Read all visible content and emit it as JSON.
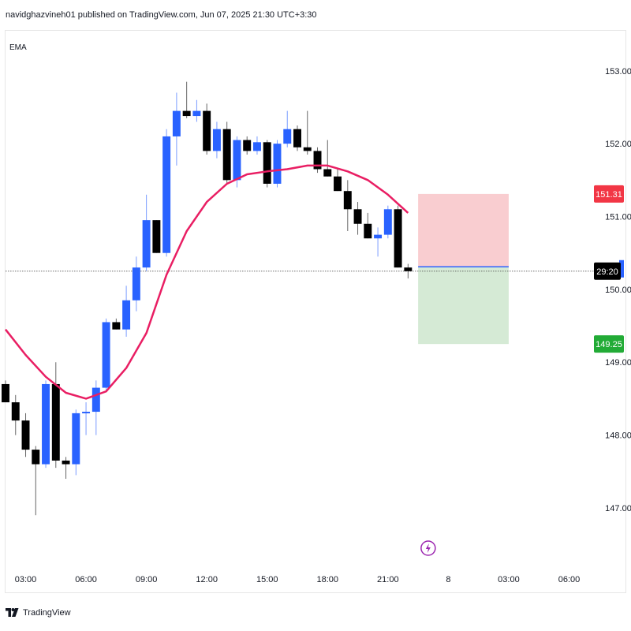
{
  "header": {
    "publisher_text": "navidghazvineh01 published on TradingView.com, Jun 07, 2025 21:30 UTC+3:30"
  },
  "footer": {
    "brand": "TradingView"
  },
  "indicator": {
    "label": "EMA",
    "color": "#e91e63"
  },
  "colors": {
    "up": "#2962ff",
    "down": "#000000",
    "stop_zone": "#f9cdd0",
    "target_zone": "#d5ead5",
    "stop_label_bg": "#f23645",
    "target_label_bg": "#22ab36",
    "current_label_bg": "#000000",
    "entry_line": "#2962ff"
  },
  "chart_data": {
    "type": "candlestick",
    "ylim": [
      146.35,
      153.55
    ],
    "y_ticks": [
      "153.00",
      "152.00",
      "151.00",
      "150.00",
      "149.00",
      "148.00",
      "147.00"
    ],
    "y_tick_values": [
      153,
      152,
      151,
      150,
      149,
      148,
      147
    ],
    "x_ticks": [
      "03:00",
      "06:00",
      "09:00",
      "12:00",
      "15:00",
      "18:00",
      "21:00",
      "8",
      "03:00",
      "06:00"
    ],
    "x_tick_hours": [
      3,
      6,
      9,
      12,
      15,
      18,
      21,
      24,
      27,
      30
    ],
    "x_range_hours": [
      2.0,
      31.0
    ],
    "candle_interval_hours": 0.5,
    "candles": [
      {
        "t": 2.0,
        "o": 148.7,
        "h": 148.75,
        "l": 148.45,
        "c": 148.45
      },
      {
        "t": 2.5,
        "o": 148.45,
        "h": 148.55,
        "l": 148.0,
        "c": 148.2
      },
      {
        "t": 3.0,
        "o": 148.2,
        "h": 148.3,
        "l": 147.7,
        "c": 147.8
      },
      {
        "t": 3.5,
        "o": 147.8,
        "h": 147.85,
        "l": 146.9,
        "c": 147.6
      },
      {
        "t": 4.0,
        "o": 147.6,
        "h": 148.75,
        "l": 147.55,
        "c": 148.7
      },
      {
        "t": 4.5,
        "o": 148.7,
        "h": 149.0,
        "l": 147.55,
        "c": 147.65
      },
      {
        "t": 5.0,
        "o": 147.65,
        "h": 147.7,
        "l": 147.4,
        "c": 147.6
      },
      {
        "t": 5.5,
        "o": 147.6,
        "h": 148.35,
        "l": 147.45,
        "c": 148.3
      },
      {
        "t": 6.0,
        "o": 148.3,
        "h": 148.45,
        "l": 148.0,
        "c": 148.32
      },
      {
        "t": 6.5,
        "o": 148.32,
        "h": 148.75,
        "l": 148.0,
        "c": 148.65
      },
      {
        "t": 7.0,
        "o": 148.65,
        "h": 149.6,
        "l": 148.6,
        "c": 149.55
      },
      {
        "t": 7.5,
        "o": 149.55,
        "h": 149.6,
        "l": 149.45,
        "c": 149.45
      },
      {
        "t": 8.0,
        "o": 149.45,
        "h": 150.05,
        "l": 149.35,
        "c": 149.85
      },
      {
        "t": 8.5,
        "o": 149.85,
        "h": 150.45,
        "l": 149.7,
        "c": 150.3
      },
      {
        "t": 9.0,
        "o": 150.3,
        "h": 151.3,
        "l": 150.25,
        "c": 150.95
      },
      {
        "t": 9.5,
        "o": 150.95,
        "h": 150.95,
        "l": 150.5,
        "c": 150.5
      },
      {
        "t": 10.0,
        "o": 150.5,
        "h": 152.2,
        "l": 150.45,
        "c": 152.1
      },
      {
        "t": 10.5,
        "o": 152.1,
        "h": 152.7,
        "l": 151.7,
        "c": 152.45
      },
      {
        "t": 11.0,
        "o": 152.45,
        "h": 152.85,
        "l": 152.35,
        "c": 152.38
      },
      {
        "t": 11.5,
        "o": 152.38,
        "h": 152.6,
        "l": 152.3,
        "c": 152.45
      },
      {
        "t": 12.0,
        "o": 152.45,
        "h": 152.55,
        "l": 151.85,
        "c": 151.9
      },
      {
        "t": 12.5,
        "o": 151.9,
        "h": 152.3,
        "l": 151.8,
        "c": 152.2
      },
      {
        "t": 13.0,
        "o": 152.2,
        "h": 152.3,
        "l": 151.45,
        "c": 151.5
      },
      {
        "t": 13.5,
        "o": 151.5,
        "h": 152.1,
        "l": 151.4,
        "c": 152.05
      },
      {
        "t": 14.0,
        "o": 152.05,
        "h": 152.1,
        "l": 151.85,
        "c": 151.9
      },
      {
        "t": 14.5,
        "o": 151.9,
        "h": 152.1,
        "l": 151.85,
        "c": 152.02
      },
      {
        "t": 15.0,
        "o": 152.02,
        "h": 152.05,
        "l": 151.4,
        "c": 151.45
      },
      {
        "t": 15.5,
        "o": 151.45,
        "h": 152.05,
        "l": 151.4,
        "c": 152.0
      },
      {
        "t": 16.0,
        "o": 152.0,
        "h": 152.45,
        "l": 151.95,
        "c": 152.2
      },
      {
        "t": 16.5,
        "o": 152.2,
        "h": 152.25,
        "l": 151.9,
        "c": 151.95
      },
      {
        "t": 17.0,
        "o": 151.95,
        "h": 152.45,
        "l": 151.85,
        "c": 151.9
      },
      {
        "t": 17.5,
        "o": 151.9,
        "h": 151.95,
        "l": 151.6,
        "c": 151.65
      },
      {
        "t": 18.0,
        "o": 151.65,
        "h": 152.05,
        "l": 151.55,
        "c": 151.55
      },
      {
        "t": 18.5,
        "o": 151.55,
        "h": 151.65,
        "l": 151.35,
        "c": 151.35
      },
      {
        "t": 19.0,
        "o": 151.35,
        "h": 151.5,
        "l": 150.8,
        "c": 151.1
      },
      {
        "t": 19.5,
        "o": 151.1,
        "h": 151.2,
        "l": 150.75,
        "c": 150.9
      },
      {
        "t": 20.0,
        "o": 150.9,
        "h": 151.05,
        "l": 150.7,
        "c": 150.7
      },
      {
        "t": 20.5,
        "o": 150.7,
        "h": 150.85,
        "l": 150.45,
        "c": 150.75
      },
      {
        "t": 21.0,
        "o": 150.75,
        "h": 151.15,
        "l": 150.7,
        "c": 151.1
      },
      {
        "t": 21.5,
        "o": 151.1,
        "h": 151.15,
        "l": 150.3,
        "c": 150.3
      },
      {
        "t": 22.0,
        "o": 150.3,
        "h": 150.35,
        "l": 150.15,
        "c": 150.25
      }
    ],
    "ema": [
      {
        "t": 2.0,
        "v": 149.45
      },
      {
        "t": 3.0,
        "v": 149.1
      },
      {
        "t": 4.0,
        "v": 148.8
      },
      {
        "t": 5.0,
        "v": 148.58
      },
      {
        "t": 6.0,
        "v": 148.5
      },
      {
        "t": 7.0,
        "v": 148.6
      },
      {
        "t": 8.0,
        "v": 148.92
      },
      {
        "t": 9.0,
        "v": 149.4
      },
      {
        "t": 10.0,
        "v": 150.2
      },
      {
        "t": 11.0,
        "v": 150.8
      },
      {
        "t": 12.0,
        "v": 151.2
      },
      {
        "t": 13.0,
        "v": 151.45
      },
      {
        "t": 14.0,
        "v": 151.58
      },
      {
        "t": 15.0,
        "v": 151.62
      },
      {
        "t": 16.0,
        "v": 151.65
      },
      {
        "t": 17.0,
        "v": 151.7
      },
      {
        "t": 18.0,
        "v": 151.7
      },
      {
        "t": 19.0,
        "v": 151.62
      },
      {
        "t": 20.0,
        "v": 151.5
      },
      {
        "t": 21.0,
        "v": 151.3
      },
      {
        "t": 22.0,
        "v": 151.05
      }
    ],
    "position": {
      "entry": 150.31,
      "stop": 151.31,
      "target": 149.25,
      "stop_label": "151.31",
      "target_label": "149.25",
      "t_start": 22.5,
      "t_end": 27.0
    },
    "current_price": 150.25,
    "current_price_label": "29:20",
    "event_marker_t": 23.0
  }
}
